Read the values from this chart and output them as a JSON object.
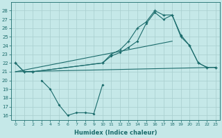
{
  "xlabel": "Humidex (Indice chaleur)",
  "bg_color": "#c5e8e8",
  "grid_color": "#a8cece",
  "line_color": "#1a6b6b",
  "x_all": [
    0,
    1,
    2,
    3,
    4,
    5,
    6,
    7,
    8,
    9,
    10,
    11,
    12,
    13,
    14,
    15,
    16,
    17,
    18,
    19,
    20,
    21,
    22,
    23
  ],
  "line_upper": {
    "x": [
      0,
      1,
      2,
      10,
      11,
      12,
      13,
      14,
      15,
      16,
      17,
      18,
      19,
      20,
      21,
      22,
      23
    ],
    "y": [
      22,
      21,
      21,
      22,
      23,
      23.5,
      24.5,
      26.0,
      26.7,
      28.0,
      27.5,
      27.5,
      25.0,
      24.0,
      22.0,
      21.5,
      21.5
    ]
  },
  "line_mid": {
    "x": [
      0,
      1,
      2,
      10,
      11,
      12,
      13,
      14,
      15,
      16,
      17,
      18,
      19,
      20,
      21,
      22,
      23
    ],
    "y": [
      22,
      21,
      21,
      22,
      22.8,
      23.2,
      23.8,
      24.5,
      26.5,
      27.8,
      27.0,
      27.5,
      25.2,
      24.0,
      22.0,
      21.5,
      21.5
    ]
  },
  "line_straight": {
    "x": [
      0,
      23
    ],
    "y": [
      21.0,
      21.5
    ]
  },
  "line_straight2": {
    "x": [
      0,
      18
    ],
    "y": [
      21.0,
      24.5
    ]
  },
  "line_dip": {
    "x": [
      3,
      4,
      5,
      6,
      7,
      8,
      9,
      10
    ],
    "y": [
      20.0,
      19.0,
      17.2,
      16.0,
      16.3,
      16.3,
      16.2,
      19.5
    ]
  },
  "ylim": [
    15.5,
    29
  ],
  "xlim": [
    -0.5,
    23.5
  ],
  "yticks": [
    16,
    17,
    18,
    19,
    20,
    21,
    22,
    23,
    24,
    25,
    26,
    27,
    28
  ],
  "xticks": [
    0,
    1,
    2,
    3,
    4,
    5,
    6,
    7,
    8,
    9,
    10,
    11,
    12,
    13,
    14,
    15,
    16,
    17,
    18,
    19,
    20,
    21,
    22,
    23
  ],
  "tick_fontsize": 5,
  "xlabel_fontsize": 6
}
